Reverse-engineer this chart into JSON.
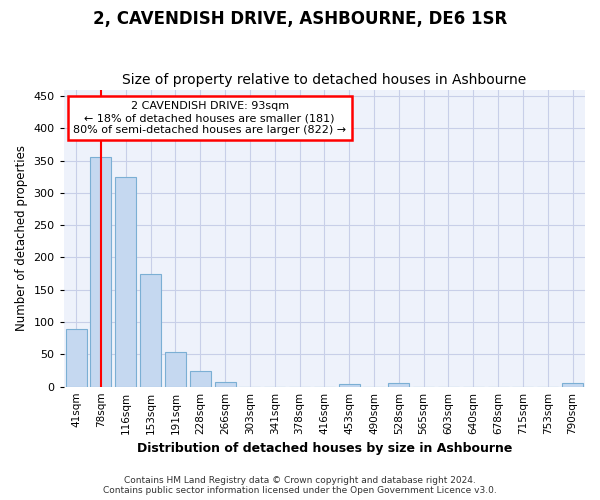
{
  "title": "2, CAVENDISH DRIVE, ASHBOURNE, DE6 1SR",
  "subtitle": "Size of property relative to detached houses in Ashbourne",
  "xlabel": "Distribution of detached houses by size in Ashbourne",
  "ylabel": "Number of detached properties",
  "categories": [
    "41sqm",
    "78sqm",
    "116sqm",
    "153sqm",
    "191sqm",
    "228sqm",
    "266sqm",
    "303sqm",
    "341sqm",
    "378sqm",
    "416sqm",
    "453sqm",
    "490sqm",
    "528sqm",
    "565sqm",
    "603sqm",
    "640sqm",
    "678sqm",
    "715sqm",
    "753sqm",
    "790sqm"
  ],
  "values": [
    90,
    355,
    325,
    175,
    53,
    25,
    8,
    0,
    0,
    0,
    0,
    4,
    0,
    5,
    0,
    0,
    0,
    0,
    0,
    0,
    5
  ],
  "bar_color": "#c5d8f0",
  "bar_edge_color": "#7bafd4",
  "red_line_x": 1.0,
  "annotation_text": "2 CAVENDISH DRIVE: 93sqm\n← 18% of detached houses are smaller (181)\n80% of semi-detached houses are larger (822) →",
  "annotation_box_color": "white",
  "annotation_box_edgecolor": "red",
  "ylim": [
    0,
    460
  ],
  "yticks": [
    0,
    50,
    100,
    150,
    200,
    250,
    300,
    350,
    400,
    450
  ],
  "footer_line1": "Contains HM Land Registry data © Crown copyright and database right 2024.",
  "footer_line2": "Contains public sector information licensed under the Open Government Licence v3.0.",
  "fig_bg_color": "#ffffff",
  "plot_bg_color": "#eef2fb",
  "grid_color": "#c8cfe8",
  "title_fontsize": 12,
  "subtitle_fontsize": 10
}
